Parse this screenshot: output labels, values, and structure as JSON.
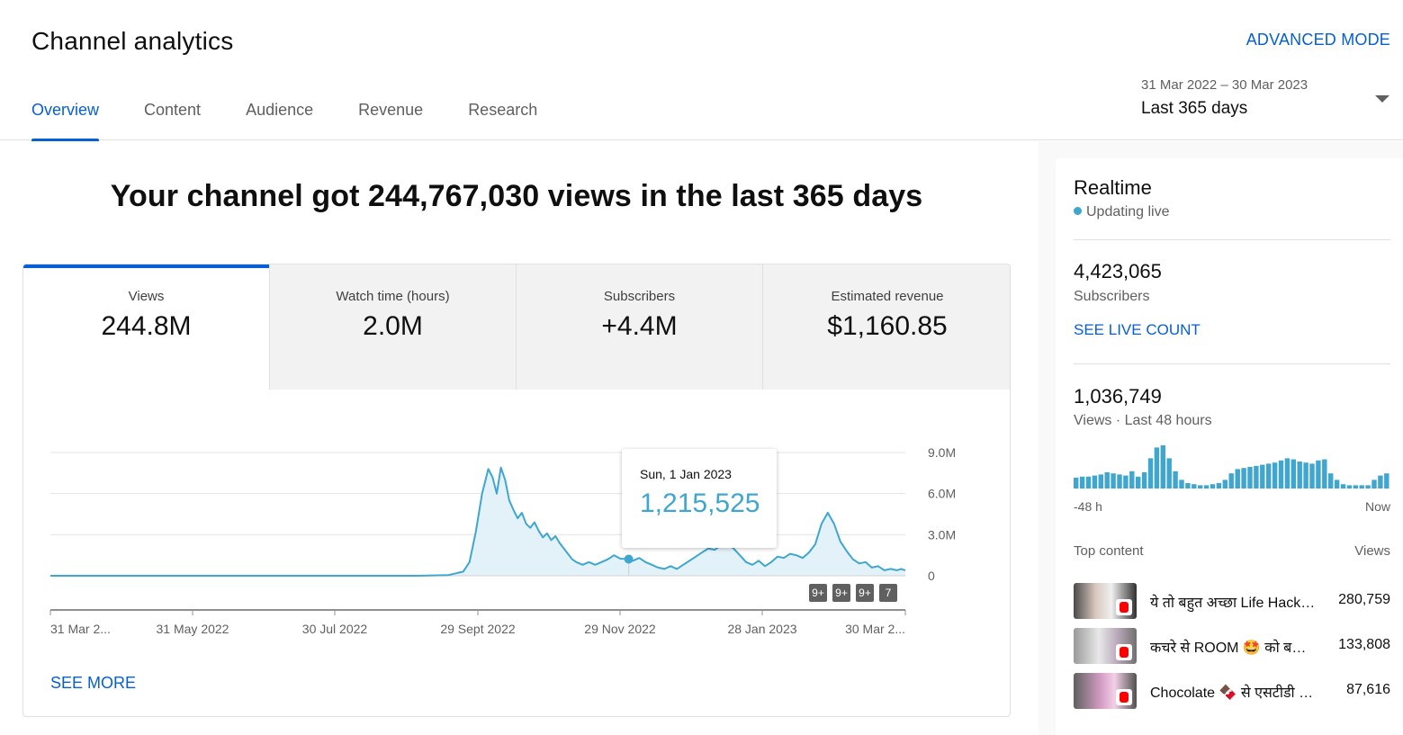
{
  "header": {
    "title": "Channel analytics",
    "advanced_mode": "ADVANCED MODE",
    "tabs": [
      {
        "label": "Overview",
        "active": true
      },
      {
        "label": "Content",
        "active": false
      },
      {
        "label": "Audience",
        "active": false
      },
      {
        "label": "Revenue",
        "active": false
      },
      {
        "label": "Research",
        "active": false
      }
    ],
    "date_range": {
      "range": "31 Mar 2022 – 30 Mar 2023",
      "period": "Last 365 days"
    }
  },
  "main": {
    "headline": "Your channel got 244,767,030 views in the last 365 days",
    "metrics": [
      {
        "label": "Views",
        "value": "244.8M"
      },
      {
        "label": "Watch time (hours)",
        "value": "2.0M"
      },
      {
        "label": "Subscribers",
        "value": "+4.4M"
      },
      {
        "label": "Estimated revenue",
        "value": "$1,160.85"
      }
    ],
    "see_more": "SEE MORE",
    "tooltip": {
      "date": "Sun, 1 Jan 2023",
      "value": "1,215,525"
    },
    "badges": [
      "9+",
      "9+",
      "9+",
      "7"
    ]
  },
  "chart_data": {
    "type": "area",
    "series": [
      {
        "values": [
          [
            0,
            0
          ],
          [
            175,
            0
          ],
          [
            190,
            0.05
          ],
          [
            197,
            0.3
          ],
          [
            200,
            1.0
          ],
          [
            203,
            3.2
          ],
          [
            206,
            6.0
          ],
          [
            209,
            7.8
          ],
          [
            211,
            7.2
          ],
          [
            213,
            6.0
          ],
          [
            215,
            7.9
          ],
          [
            217,
            7.0
          ],
          [
            219,
            5.5
          ],
          [
            221,
            4.8
          ],
          [
            223,
            4.2
          ],
          [
            225,
            4.6
          ],
          [
            227,
            3.8
          ],
          [
            229,
            3.5
          ],
          [
            231,
            3.9
          ],
          [
            233,
            3.3
          ],
          [
            235,
            2.8
          ],
          [
            237,
            3.1
          ],
          [
            239,
            2.6
          ],
          [
            241,
            2.9
          ],
          [
            243,
            2.4
          ],
          [
            245,
            2.0
          ],
          [
            247,
            1.6
          ],
          [
            249,
            1.2
          ],
          [
            251,
            1.0
          ],
          [
            254,
            0.8
          ],
          [
            257,
            1.0
          ],
          [
            260,
            0.8
          ],
          [
            263,
            1.0
          ],
          [
            266,
            1.2
          ],
          [
            269,
            1.5
          ],
          [
            272,
            1.25
          ],
          [
            275,
            1.22
          ],
          [
            278,
            1.1
          ],
          [
            281,
            1.3
          ],
          [
            284,
            1.0
          ],
          [
            287,
            0.8
          ],
          [
            290,
            0.6
          ],
          [
            293,
            0.5
          ],
          [
            296,
            0.7
          ],
          [
            299,
            0.5
          ],
          [
            302,
            0.8
          ],
          [
            305,
            1.1
          ],
          [
            308,
            1.4
          ],
          [
            311,
            1.7
          ],
          [
            314,
            2.0
          ],
          [
            317,
            1.9
          ],
          [
            320,
            2.2
          ],
          [
            323,
            2.3
          ],
          [
            326,
            2.0
          ],
          [
            329,
            1.5
          ],
          [
            332,
            1.0
          ],
          [
            335,
            0.8
          ],
          [
            338,
            1.1
          ],
          [
            341,
            0.7
          ],
          [
            344,
            1.0
          ],
          [
            347,
            1.4
          ],
          [
            350,
            1.3
          ],
          [
            353,
            1.6
          ],
          [
            356,
            1.5
          ],
          [
            359,
            1.3
          ],
          [
            362,
            1.7
          ],
          [
            365,
            2.3
          ],
          [
            368,
            3.8
          ],
          [
            371,
            4.6
          ],
          [
            374,
            3.8
          ],
          [
            377,
            2.5
          ],
          [
            380,
            1.8
          ],
          [
            383,
            1.2
          ],
          [
            386,
            0.9
          ],
          [
            389,
            1.0
          ],
          [
            392,
            0.6
          ],
          [
            395,
            0.7
          ],
          [
            398,
            0.4
          ],
          [
            401,
            0.5
          ],
          [
            404,
            0.4
          ],
          [
            406,
            0.5
          ],
          [
            408,
            0.4
          ]
        ]
      }
    ],
    "x_ticks": [
      "31 Mar 2...",
      "31 May 2022",
      "30 Jul 2022",
      "29 Sept 2022",
      "29 Nov 2022",
      "28 Jan 2023",
      "30 Mar 2..."
    ],
    "y_ticks": [
      "0",
      "3.0M",
      "6.0M",
      "9.0M"
    ],
    "ylim": [
      0,
      9
    ],
    "grid": true,
    "highlight": {
      "x": 276,
      "y": 1.215525
    }
  },
  "realtime": {
    "title": "Realtime",
    "live": "Updating live",
    "subscribers": "4,423,065",
    "subscribers_label": "Subscribers",
    "see_live_count": "SEE LIVE COUNT",
    "views": "1,036,749",
    "views_label": "Views · Last 48 hours",
    "axis_start": "-48 h",
    "axis_end": "Now",
    "bars": [
      10,
      11,
      11,
      12,
      13,
      15,
      14,
      13,
      12,
      16,
      11,
      15,
      28,
      38,
      40,
      28,
      16,
      8,
      5,
      4,
      3,
      3,
      4,
      5,
      8,
      14,
      18,
      19,
      20,
      21,
      22,
      23,
      24,
      26,
      28,
      27,
      25,
      24,
      23,
      26,
      27,
      14,
      8,
      4,
      3,
      3,
      3,
      3,
      8,
      12,
      14
    ],
    "top_content_label": "Top content",
    "top_content_views_label": "Views",
    "top_content": [
      {
        "title": "ये तो बहुत अच्छा Life Hack है 😱",
        "views": "280,759"
      },
      {
        "title": "कचरे से ROOM 🤩 को बना दिया",
        "views": "133,808"
      },
      {
        "title": "Chocolate 🍫 से एसटीडी कैसे",
        "views": "87,616"
      }
    ],
    "colors": {
      "accent": "#3ea6cf",
      "link": "#065fd4"
    }
  }
}
